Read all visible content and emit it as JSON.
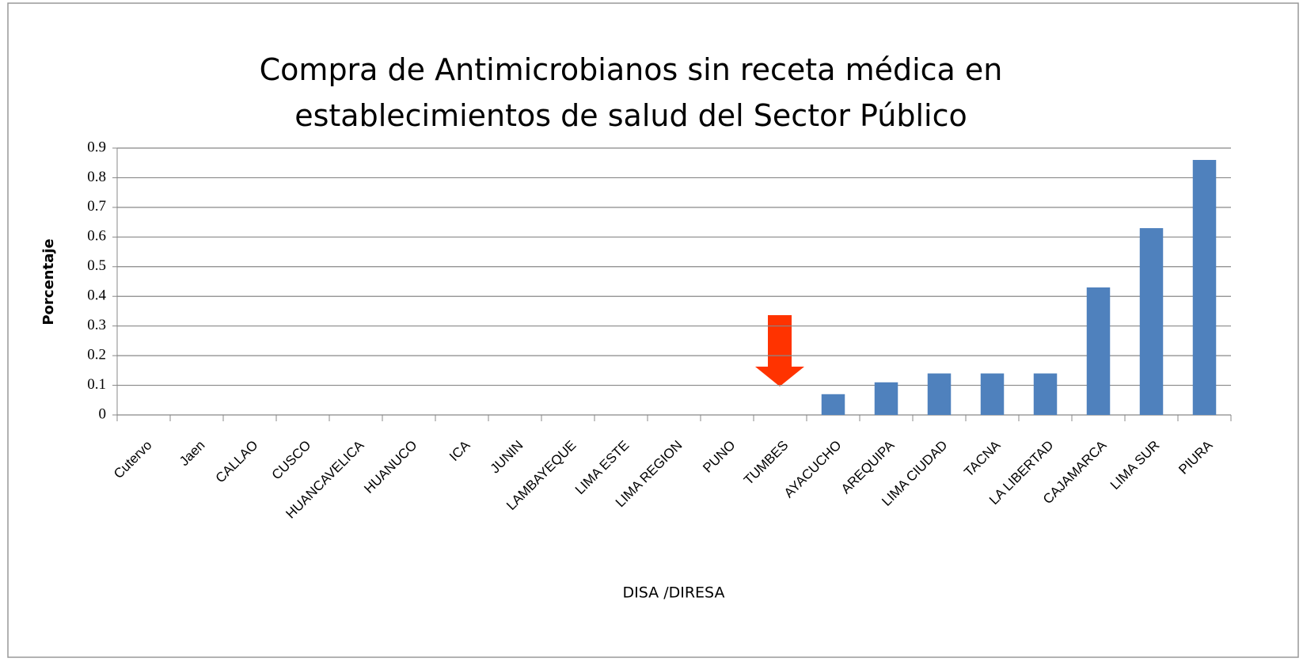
{
  "chart_data": {
    "type": "bar",
    "title": "Compra de Antimicrobianos sin receta médica en establecimientos de salud del Sector Público",
    "xlabel": "DISA /DIRESA",
    "ylabel": "Porcentaje",
    "categories": [
      "Cutervo",
      "Jaen",
      "CALLAO",
      "CUSCO",
      "HUANCAVELICA",
      "HUANUCO",
      "ICA",
      "JUNIN",
      "LAMBAYEQUE",
      "LIMA ESTE",
      "LIMA REGION",
      "PUNO",
      "TUMBES",
      "AYACUCHO",
      "AREQUIPA",
      "LIMA CIUDAD",
      "TACNA",
      "LA LIBERTAD",
      "CAJAMARCA",
      "LIMA SUR",
      "PIURA"
    ],
    "values": [
      0,
      0,
      0,
      0,
      0,
      0,
      0,
      0,
      0,
      0,
      0,
      0,
      0,
      0.07,
      0.11,
      0.14,
      0.14,
      0.14,
      0.43,
      0.63,
      0.86
    ],
    "color": "#4f81bd",
    "ylim": [
      0,
      0.9
    ],
    "yticks": [
      0,
      0.1,
      0.2,
      0.3,
      0.4,
      0.5,
      0.6,
      0.7,
      0.8,
      0.9
    ],
    "grid": true
  }
}
